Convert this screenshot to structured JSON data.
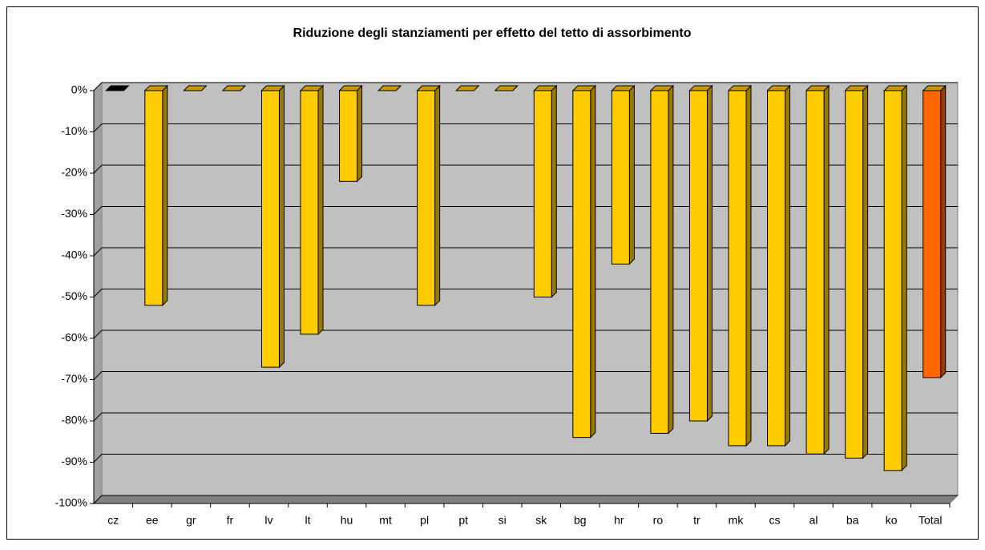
{
  "chart_data": {
    "type": "bar3d",
    "title": "Riduzione degli stanziamenti per effetto del tetto di assorbimento",
    "categories": [
      "cz",
      "ee",
      "gr",
      "fr",
      "lv",
      "lt",
      "hu",
      "mt",
      "pl",
      "pt",
      "si",
      "sk",
      "bg",
      "hr",
      "ro",
      "tr",
      "mk",
      "cs",
      "al",
      "ba",
      "ko",
      "Total"
    ],
    "values": [
      0,
      -52,
      0,
      0,
      -67,
      -59,
      -22,
      0,
      -52,
      0,
      0,
      -50,
      -84,
      -42,
      -83,
      -80,
      -86,
      -86,
      -88,
      -89,
      -92,
      -69.5
    ],
    "colors": [
      "#000000",
      "#ffcc00",
      "#ffcc00",
      "#ffcc00",
      "#ffcc00",
      "#ffcc00",
      "#ffcc00",
      "#ffcc00",
      "#ffcc00",
      "#ffcc00",
      "#ffcc00",
      "#ffcc00",
      "#ffcc00",
      "#ffcc00",
      "#ffcc00",
      "#ffcc00",
      "#ffcc00",
      "#ffcc00",
      "#ffcc00",
      "#ffcc00",
      "#ffcc00",
      "#ff6600"
    ],
    "ylim": [
      -100,
      0
    ],
    "yticks": [
      {
        "value": -100,
        "label": "-100%"
      },
      {
        "value": -90,
        "label": "-90%"
      },
      {
        "value": -80,
        "label": "-80%"
      },
      {
        "value": -70,
        "label": "-70%"
      },
      {
        "value": -60,
        "label": "-60%"
      },
      {
        "value": -50,
        "label": "-50%"
      },
      {
        "value": -40,
        "label": "-40%"
      },
      {
        "value": -30,
        "label": "-30%"
      },
      {
        "value": -20,
        "label": "-20%"
      },
      {
        "value": -10,
        "label": "-10%"
      },
      {
        "value": 0,
        "label": "0%"
      }
    ],
    "grid": true
  }
}
